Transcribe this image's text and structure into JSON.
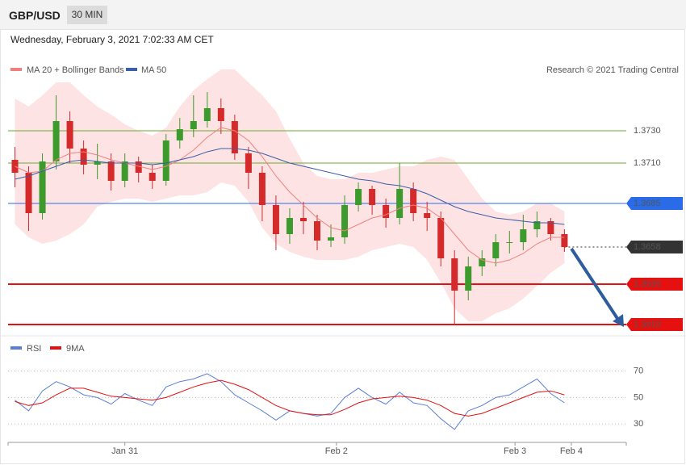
{
  "header": {
    "symbol": "GBP/USD",
    "interval": "30 MIN",
    "datetime": "Wednesday, February 3, 2021 7:02:33 AM CET"
  },
  "credit": "Research © 2021 Trading Central",
  "chart_data": [
    {
      "type": "candlestick",
      "x": [
        0,
        1,
        2,
        3,
        4,
        5,
        6,
        7,
        8,
        9,
        10,
        11,
        12,
        13,
        14,
        15,
        16,
        17,
        18,
        19,
        20,
        21,
        22,
        23,
        24,
        25,
        26,
        27,
        28,
        29,
        30,
        31,
        32,
        33,
        34,
        35,
        36,
        37,
        38,
        39,
        40
      ],
      "open": [
        1.3712,
        1.3704,
        1.3679,
        1.3711,
        1.3736,
        1.3719,
        1.3709,
        1.3711,
        1.3699,
        1.3711,
        1.3704,
        1.3699,
        1.3724,
        1.3731,
        1.3736,
        1.3744,
        1.3736,
        1.3716,
        1.3704,
        1.3684,
        1.3666,
        1.3676,
        1.3674,
        1.3662,
        1.3664,
        1.3684,
        1.3694,
        1.3684,
        1.3676,
        1.3694,
        1.3679,
        1.3676,
        1.3651,
        1.3631,
        1.3646,
        1.3651,
        1.3661,
        1.3661,
        1.3669,
        1.3674,
        1.3666
      ],
      "high": [
        1.372,
        1.3708,
        1.3716,
        1.3752,
        1.3742,
        1.3724,
        1.3722,
        1.3716,
        1.3716,
        1.3714,
        1.3709,
        1.3728,
        1.3738,
        1.3752,
        1.3754,
        1.375,
        1.374,
        1.372,
        1.3708,
        1.369,
        1.3682,
        1.3686,
        1.3678,
        1.3672,
        1.369,
        1.3698,
        1.3696,
        1.3688,
        1.371,
        1.3698,
        1.3686,
        1.368,
        1.3656,
        1.3652,
        1.3656,
        1.3666,
        1.3668,
        1.3678,
        1.368,
        1.3676,
        1.3669
      ],
      "low": [
        1.3695,
        1.3668,
        1.3675,
        1.3706,
        1.371,
        1.3703,
        1.37,
        1.3693,
        1.3695,
        1.3698,
        1.3694,
        1.3696,
        1.3719,
        1.3726,
        1.3732,
        1.3728,
        1.3712,
        1.3694,
        1.3674,
        1.3656,
        1.366,
        1.3666,
        1.3656,
        1.3658,
        1.366,
        1.368,
        1.3678,
        1.367,
        1.3672,
        1.3674,
        1.3668,
        1.3646,
        1.361,
        1.3625,
        1.364,
        1.3646,
        1.3654,
        1.3656,
        1.3664,
        1.3662,
        1.3655
      ],
      "close": [
        1.3704,
        1.3679,
        1.3711,
        1.3736,
        1.3719,
        1.3709,
        1.3711,
        1.3699,
        1.3711,
        1.3704,
        1.3699,
        1.3724,
        1.3731,
        1.3736,
        1.3744,
        1.3736,
        1.3716,
        1.3704,
        1.3684,
        1.3666,
        1.3676,
        1.3674,
        1.3662,
        1.3664,
        1.3684,
        1.3694,
        1.3684,
        1.3676,
        1.3694,
        1.3679,
        1.3676,
        1.3651,
        1.3631,
        1.3646,
        1.3651,
        1.3661,
        1.3661,
        1.3669,
        1.3674,
        1.3666,
        1.3658
      ],
      "up_color": "#3d9a2c",
      "down_color": "#d42a2a",
      "series": [
        {
          "name": "MA 20 + Bollinger Bands",
          "color": "#f08080",
          "band_color": "#fde3e3",
          "values": [
            1.3708,
            1.3704,
            1.3705,
            1.3712,
            1.3716,
            1.3717,
            1.3715,
            1.3712,
            1.371,
            1.3708,
            1.3706,
            1.3708,
            1.3712,
            1.3718,
            1.3726,
            1.3732,
            1.373,
            1.3724,
            1.3714,
            1.3702,
            1.3692,
            1.3684,
            1.3676,
            1.367,
            1.3668,
            1.3672,
            1.3676,
            1.3678,
            1.3682,
            1.3684,
            1.3682,
            1.3676,
            1.3666,
            1.3656,
            1.365,
            1.3648,
            1.365,
            1.3654,
            1.366,
            1.3664,
            1.3664
          ],
          "upper": [
            1.375,
            1.3745,
            1.3752,
            1.376,
            1.376,
            1.3752,
            1.3745,
            1.374,
            1.3734,
            1.373,
            1.3727,
            1.3732,
            1.3745,
            1.3755,
            1.3762,
            1.3768,
            1.3768,
            1.376,
            1.3752,
            1.3742,
            1.3725,
            1.371,
            1.3702,
            1.37,
            1.37,
            1.3704,
            1.3704,
            1.3706,
            1.3708,
            1.3708,
            1.3712,
            1.3714,
            1.3712,
            1.37,
            1.3688,
            1.368,
            1.3678,
            1.368,
            1.3685,
            1.3685,
            1.368
          ],
          "lower": [
            1.3672,
            1.3664,
            1.366,
            1.3662,
            1.3666,
            1.3672,
            1.3683,
            1.3686,
            1.3688,
            1.3688,
            1.3686,
            1.3688,
            1.369,
            1.369,
            1.3692,
            1.3698,
            1.3696,
            1.3686,
            1.367,
            1.366,
            1.3655,
            1.3652,
            1.365,
            1.365,
            1.365,
            1.3652,
            1.3656,
            1.3658,
            1.366,
            1.3658,
            1.365,
            1.3636,
            1.362,
            1.3612,
            1.3612,
            1.3617,
            1.362,
            1.3626,
            1.3634,
            1.3642,
            1.3648
          ]
        },
        {
          "name": "MA 50",
          "color": "#3a5ea8",
          "values": [
            1.37,
            1.3702,
            1.3705,
            1.3708,
            1.3711,
            1.3712,
            1.3711,
            1.371,
            1.371,
            1.371,
            1.3709,
            1.371,
            1.3712,
            1.3714,
            1.3717,
            1.3719,
            1.3719,
            1.3718,
            1.3716,
            1.3713,
            1.371,
            1.3708,
            1.3706,
            1.3704,
            1.3702,
            1.37,
            1.3699,
            1.3697,
            1.3696,
            1.3694,
            1.3691,
            1.3687,
            1.3683,
            1.368,
            1.3678,
            1.3676,
            1.3675,
            1.3674,
            1.3673,
            1.3673,
            1.3672
          ]
        }
      ],
      "levels": [
        {
          "value": 1.373,
          "label": "1.3730",
          "kind": "resistance",
          "color": "#6aa832"
        },
        {
          "value": 1.371,
          "label": "1.3710",
          "kind": "resistance",
          "color": "#6aa832"
        },
        {
          "value": 1.3685,
          "label": "1.3685",
          "kind": "pivot",
          "color": "#2a6be8"
        },
        {
          "value": 1.3658,
          "label": "1.3658",
          "kind": "last",
          "color": "#333333"
        },
        {
          "value": 1.3635,
          "label": "1.3635",
          "kind": "support",
          "color": "#e51010"
        },
        {
          "value": 1.361,
          "label": "1.3610",
          "kind": "support",
          "color": "#e51010"
        }
      ],
      "xlim": [
        -0.5,
        44.5
      ],
      "ylim": [
        1.3606,
        1.3761
      ]
    },
    {
      "type": "line",
      "x": [
        0,
        1,
        2,
        3,
        4,
        5,
        6,
        7,
        8,
        9,
        10,
        11,
        12,
        13,
        14,
        15,
        16,
        17,
        18,
        19,
        20,
        21,
        22,
        23,
        24,
        25,
        26,
        27,
        28,
        29,
        30,
        31,
        32,
        33,
        34,
        35,
        36,
        37,
        38,
        39,
        40
      ],
      "series": [
        {
          "name": "RSI",
          "color": "#5b7fd6",
          "values": [
            48,
            40,
            55,
            62,
            58,
            52,
            50,
            45,
            53,
            48,
            44,
            58,
            62,
            64,
            68,
            62,
            52,
            46,
            40,
            33,
            40,
            38,
            36,
            38,
            50,
            57,
            50,
            45,
            54,
            46,
            44,
            34,
            26,
            40,
            44,
            50,
            52,
            58,
            64,
            53,
            46
          ]
        },
        {
          "name": "9MA",
          "color": "#e51010",
          "values": [
            47,
            44,
            46,
            52,
            57,
            57,
            54,
            51,
            50,
            49,
            48,
            50,
            54,
            58,
            61,
            63,
            60,
            56,
            50,
            44,
            40,
            38,
            37,
            37,
            41,
            46,
            49,
            50,
            51,
            50,
            48,
            44,
            38,
            36,
            38,
            42,
            46,
            50,
            54,
            55,
            52
          ]
        }
      ],
      "xlim": [
        -0.5,
        44.5
      ],
      "xticks": [
        {
          "value": 8,
          "label": "Jan 31"
        },
        {
          "value": 23.4,
          "label": "Feb 2"
        },
        {
          "value": 36.4,
          "label": "Feb 3"
        },
        {
          "value": 40.5,
          "label": "Feb 4"
        }
      ],
      "ylim": [
        18,
        88
      ],
      "yticks": [
        30,
        50,
        70
      ],
      "grid": true
    }
  ]
}
